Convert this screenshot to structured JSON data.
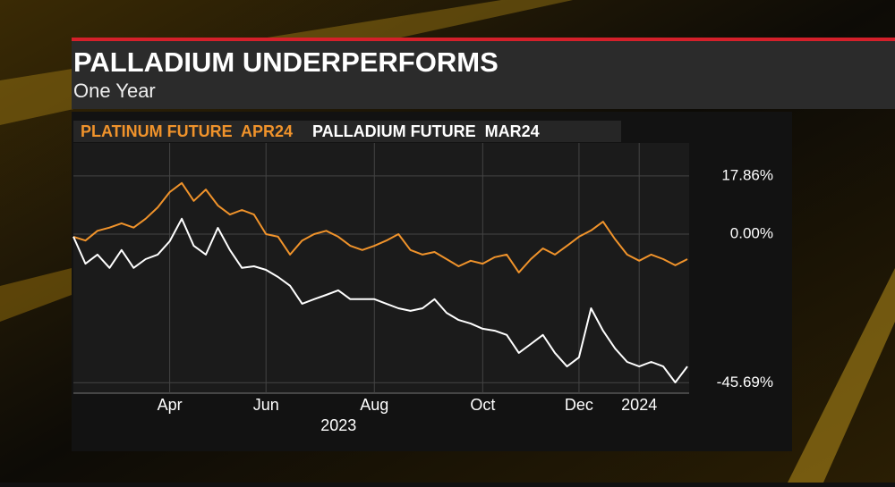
{
  "chart_data": {
    "type": "line",
    "title": "PALLADIUM UNDERPERFORMS",
    "subtitle": "One Year",
    "xlabel": "2023",
    "categories": [
      null,
      null,
      null,
      null,
      null,
      null,
      null,
      null,
      "Apr",
      null,
      null,
      null,
      null,
      null,
      null,
      null,
      "Jun",
      null,
      null,
      null,
      null,
      null,
      null,
      null,
      null,
      "Aug",
      null,
      null,
      null,
      null,
      null,
      null,
      null,
      null,
      "Oct",
      null,
      null,
      null,
      null,
      null,
      null,
      null,
      "Dec",
      null,
      null,
      null,
      null,
      "2024",
      null,
      null,
      null,
      null
    ],
    "series": [
      {
        "name": "PLATINUM FUTURE  APR24",
        "color": "#f0932b",
        "values": [
          -0.8,
          -2,
          1,
          2,
          3.3,
          2,
          4.7,
          8.2,
          12.9,
          15.7,
          10.2,
          13.7,
          8.8,
          6,
          7.4,
          6,
          0,
          -0.8,
          -6.3,
          -2,
          0,
          1,
          -0.8,
          -3.6,
          -4.9,
          -3.6,
          -2,
          0,
          -4.9,
          -6.3,
          -5.5,
          -7.7,
          -9.9,
          -8.2,
          -9.1,
          -7.1,
          -6.3,
          -11.8,
          -7.7,
          -4.4,
          -6.3,
          -3.6,
          -0.8,
          1.1,
          3.8,
          -1.6,
          -6.3,
          -8.2,
          -6.3,
          -7.7,
          -9.6,
          -7.7
        ]
      },
      {
        "name": "PALLADIUM FUTURE  MAR24",
        "color": "#ffffff",
        "values": [
          -0.8,
          -9.1,
          -6.3,
          -10.4,
          -4.9,
          -10.4,
          -7.7,
          -6.3,
          -2.2,
          4.7,
          -3.6,
          -6.3,
          1.9,
          -4.9,
          -10.4,
          -9.9,
          -11,
          -13.2,
          -15.9,
          -21.4,
          -20,
          -18.7,
          -17.3,
          -20,
          -20,
          -20,
          -21.4,
          -22.8,
          -23.6,
          -22.8,
          -20,
          -24.2,
          -26.4,
          -27.5,
          -29.1,
          -29.7,
          -31,
          -36.5,
          -33.8,
          -31,
          -36.5,
          -40.7,
          -37.9,
          -22.8,
          -29.7,
          -35.2,
          -39.3,
          -40.7,
          -39.3,
          -40.7,
          -45.6,
          -40.7
        ]
      }
    ],
    "ylim": [
      -48.9,
      28
    ],
    "yticks": [
      {
        "value": 17.86,
        "label": "17.86%"
      },
      {
        "value": 0,
        "label": "0.00%"
      },
      {
        "value": -45.69,
        "label": "-45.69%"
      }
    ],
    "grid": true
  }
}
